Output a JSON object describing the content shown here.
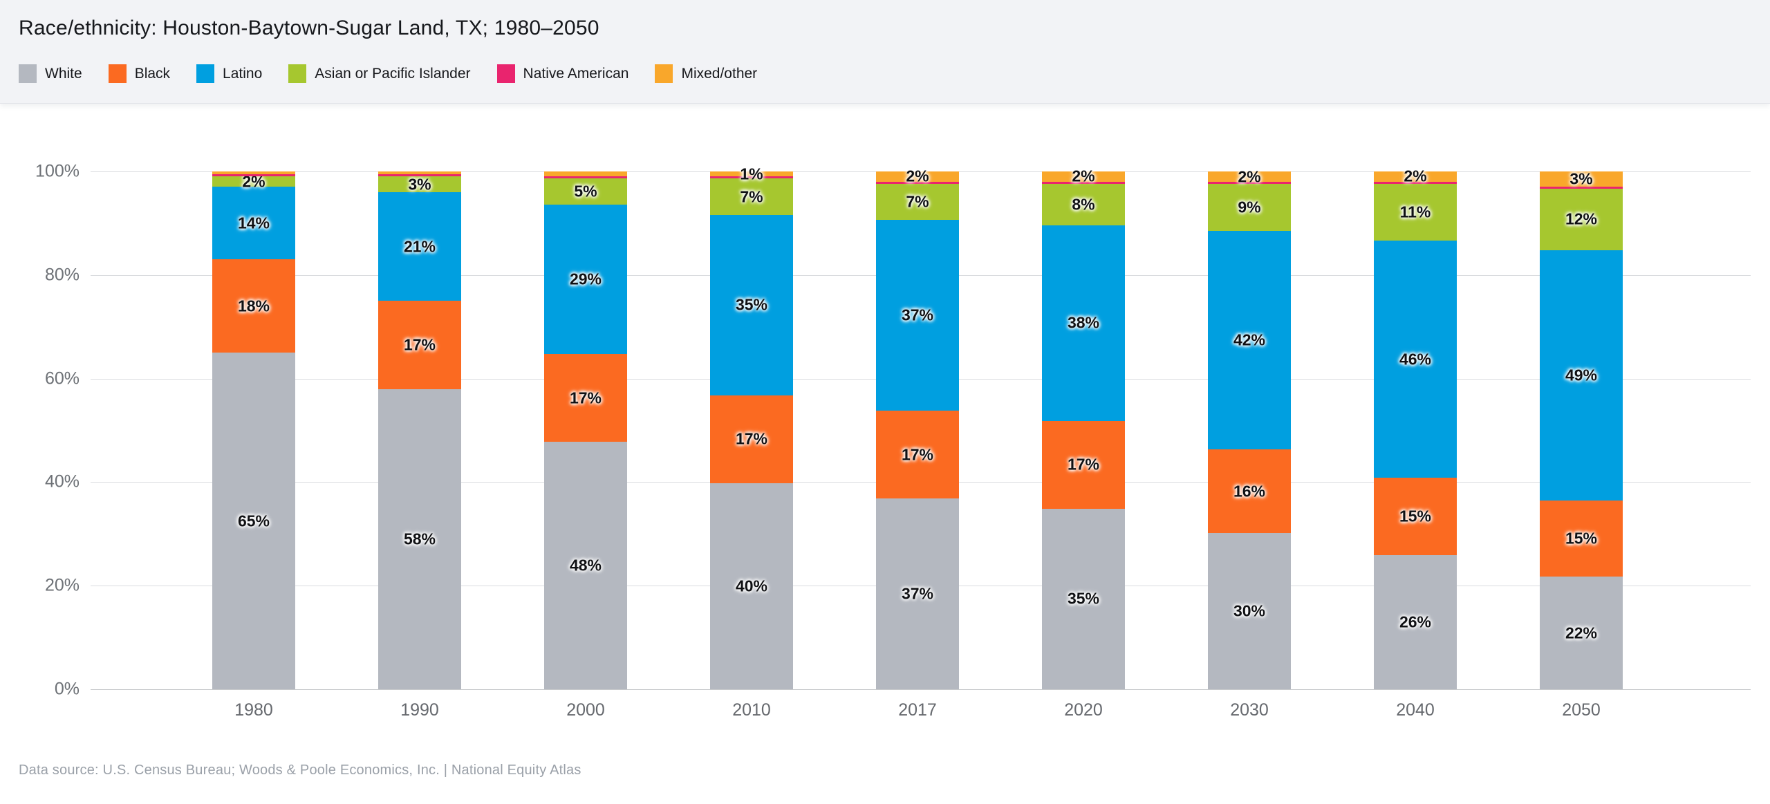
{
  "header": {
    "title": "Race/ethnicity: Houston-Baytown-Sugar Land, TX; 1980–2050"
  },
  "legend": [
    {
      "label": "White",
      "color": "#b4b8c0"
    },
    {
      "label": "Black",
      "color": "#fb6a21"
    },
    {
      "label": "Latino",
      "color": "#009fe0"
    },
    {
      "label": "Asian or Pacific Islander",
      "color": "#a6c72f"
    },
    {
      "label": "Native American",
      "color": "#e9246e"
    },
    {
      "label": "Mixed/other",
      "color": "#f9a72b"
    }
  ],
  "footer": {
    "text": "Data source: U.S. Census Bureau; Woods & Poole Economics, Inc. | National Equity Atlas"
  },
  "chart_data": {
    "type": "bar",
    "stacked": true,
    "title": "Race/ethnicity: Houston-Baytown-Sugar Land, TX; 1980–2050",
    "categories": [
      "1980",
      "1990",
      "2000",
      "2010",
      "2017",
      "2020",
      "2030",
      "2040",
      "2050"
    ],
    "xlabel": "",
    "ylabel": "",
    "ylim": [
      0,
      100
    ],
    "y_ticks": [
      "0%",
      "20%",
      "40%",
      "60%",
      "80%",
      "100%"
    ],
    "grid": true,
    "legend_position": "top",
    "series": [
      {
        "name": "White",
        "color": "#b4b8c0",
        "values": [
          65,
          58,
          48,
          40,
          37,
          35,
          30,
          26,
          22
        ],
        "labeled": [
          true,
          true,
          true,
          true,
          true,
          true,
          true,
          true,
          true
        ]
      },
      {
        "name": "Black",
        "color": "#fb6a21",
        "values": [
          18,
          17,
          17,
          17,
          17,
          17,
          16,
          15,
          15
        ],
        "labeled": [
          true,
          true,
          true,
          true,
          true,
          true,
          true,
          true,
          true
        ]
      },
      {
        "name": "Latino",
        "color": "#009fe0",
        "values": [
          14,
          21,
          29,
          35,
          37,
          38,
          42,
          46,
          49
        ],
        "labeled": [
          true,
          true,
          true,
          true,
          true,
          true,
          true,
          true,
          true
        ]
      },
      {
        "name": "Asian or Pacific Islander",
        "color": "#a6c72f",
        "values": [
          2,
          3,
          5,
          7,
          7,
          8,
          9,
          11,
          12
        ],
        "labeled": [
          true,
          true,
          true,
          true,
          true,
          true,
          true,
          true,
          true
        ]
      },
      {
        "name": "Native American",
        "color": "#e9246e",
        "values": [
          0.4,
          0.4,
          0.4,
          0.4,
          0.4,
          0.4,
          0.4,
          0.4,
          0.4
        ],
        "labeled": [
          false,
          false,
          false,
          false,
          false,
          false,
          false,
          false,
          false
        ]
      },
      {
        "name": "Mixed/other",
        "color": "#f9a72b",
        "values": [
          0.6,
          0.6,
          1,
          1,
          2,
          2,
          2,
          2,
          3
        ],
        "labeled": [
          false,
          false,
          false,
          true,
          true,
          true,
          true,
          true,
          true
        ]
      }
    ]
  }
}
